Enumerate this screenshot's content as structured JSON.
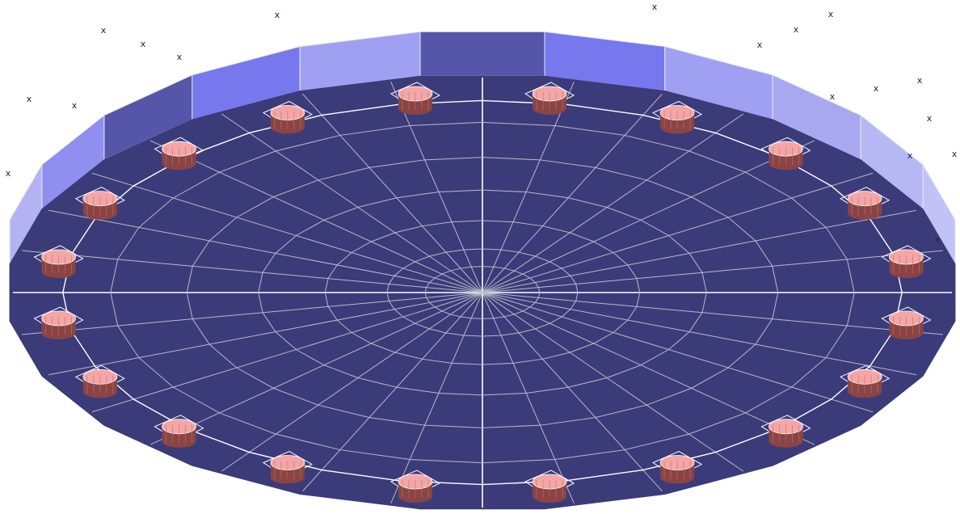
{
  "scene": {
    "type": "3d-model-view",
    "background": "#ffffff",
    "plate": {
      "shape": "circular-plate",
      "sides": 24,
      "top_color": "#3b3b7a",
      "mesh_line_color": "#b9b9c9",
      "highlight_line_color": "#ffffff",
      "wall_colors": [
        "#5555aa",
        "#7777ee",
        "#a0a0f2",
        "#a8a8f0",
        "#b7b7f3",
        "#c2c2f6",
        "#b3b3f4",
        "#8f8ff0"
      ]
    },
    "bolts": {
      "count": 20,
      "side_color": "#8a4444",
      "top_color": "#f4a6a6",
      "frame_color": "#ffffff"
    },
    "markers": {
      "glyph": "x",
      "color": "#222244",
      "count": 18
    }
  }
}
